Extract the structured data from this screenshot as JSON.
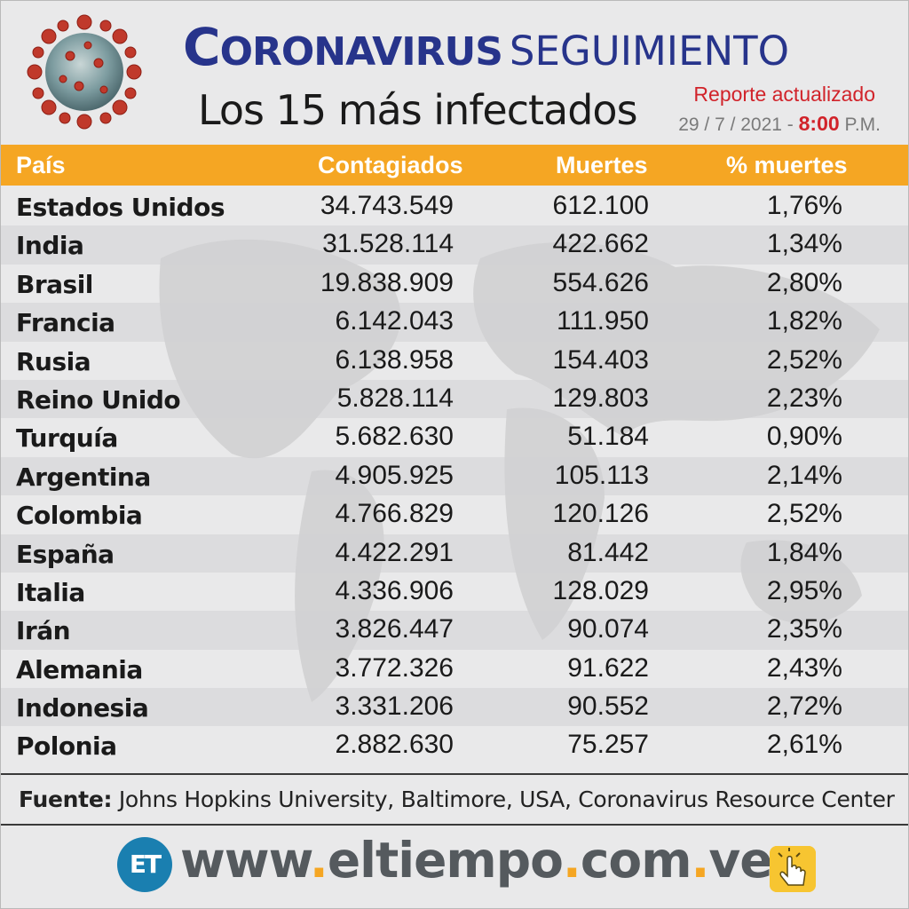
{
  "header": {
    "title_bold": "Coronavirus",
    "title_light": "SEGUIMIENTO",
    "subtitle": "Los 15 más infectados",
    "report_label": "Reporte actualizado",
    "report_date": "29 / 7 / 2021 -",
    "report_time": "8:00",
    "report_ampm": "P.M."
  },
  "table": {
    "columns": [
      "País",
      "Contagiados",
      "Muertes",
      "% muertes"
    ],
    "rows": [
      [
        "Estados Unidos",
        "34.743.549",
        "612.100",
        "1,76%"
      ],
      [
        "India",
        "31.528.114",
        "422.662",
        "1,34%"
      ],
      [
        "Brasil",
        "19.838.909",
        "554.626",
        "2,80%"
      ],
      [
        "Francia",
        "6.142.043",
        "111.950",
        "1,82%"
      ],
      [
        "Rusia",
        "6.138.958",
        "154.403",
        "2,52%"
      ],
      [
        "Reino Unido",
        "5.828.114",
        "129.803",
        "2,23%"
      ],
      [
        "Turquía",
        "5.682.630",
        "51.184",
        "0,90%"
      ],
      [
        "Argentina",
        "4.905.925",
        "105.113",
        "2,14%"
      ],
      [
        "Colombia",
        "4.766.829",
        "120.126",
        "2,52%"
      ],
      [
        "España",
        "4.422.291",
        "81.442",
        "1,84%"
      ],
      [
        "Italia",
        "4.336.906",
        "128.029",
        "2,95%"
      ],
      [
        "Irán",
        "3.826.447",
        "90.074",
        "2,35%"
      ],
      [
        "Alemania",
        "3.772.326",
        "91.622",
        "2,43%"
      ],
      [
        "Indonesia",
        "3.331.206",
        "90.552",
        "2,72%"
      ],
      [
        "Polonia",
        "2.882.630",
        "75.257",
        "2,61%"
      ]
    ]
  },
  "source": {
    "label": "Fuente:",
    "text": "Johns Hopkins University, Baltimore, USA, Coronavirus Resource Center"
  },
  "footer": {
    "logo_text": "ET",
    "url_parts": [
      "www",
      ".",
      "eltiempo",
      ".",
      "com",
      ".",
      "ve"
    ]
  },
  "colors": {
    "title_blue": "#27348b",
    "header_orange": "#f5a623",
    "report_red": "#d1232a",
    "logo_blue": "#1a7fb0"
  },
  "icons": [
    "coronavirus-illustration",
    "world-map-watermark",
    "et-logo",
    "click-hand-icon"
  ]
}
